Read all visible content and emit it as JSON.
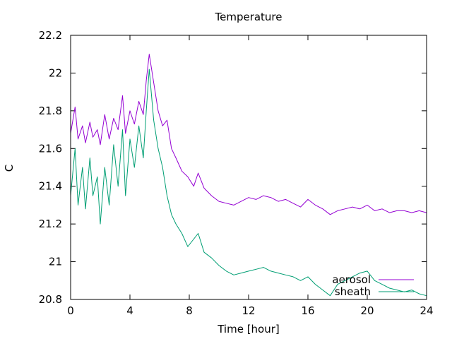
{
  "chart_data": {
    "type": "line",
    "title": "Temperature",
    "xlabel": "Time [hour]",
    "ylabel": "C",
    "xlim": [
      0,
      24
    ],
    "ylim": [
      20.8,
      22.2
    ],
    "xticks": [
      0,
      4,
      8,
      12,
      16,
      20,
      24
    ],
    "xtick_labels": [
      "0",
      "4",
      "8",
      "12",
      "16",
      "20",
      "24"
    ],
    "yticks": [
      20.8,
      21,
      21.2,
      21.4,
      21.6,
      21.8,
      22,
      22.2
    ],
    "ytick_labels": [
      "20.8",
      "21",
      "21.2",
      "21.4",
      "21.6",
      "21.8",
      "22",
      "22.2"
    ],
    "grid": false,
    "legend_position": "bottom-right",
    "series": [
      {
        "name": "aerosol",
        "color": "#9400d3",
        "x": [
          0,
          0.3,
          0.5,
          0.8,
          1.0,
          1.3,
          1.5,
          1.8,
          2.0,
          2.3,
          2.6,
          2.9,
          3.2,
          3.5,
          3.7,
          4.0,
          4.3,
          4.6,
          4.9,
          5.1,
          5.3,
          5.6,
          5.9,
          6.2,
          6.5,
          6.8,
          7.1,
          7.5,
          7.9,
          8.3,
          8.6,
          9.0,
          9.5,
          10.0,
          10.5,
          11.0,
          11.5,
          12.0,
          12.5,
          13.0,
          13.5,
          14.0,
          14.5,
          15.0,
          15.5,
          16.0,
          16.5,
          17.0,
          17.5,
          18.0,
          18.5,
          19.0,
          19.5,
          20.0,
          20.5,
          21.0,
          21.5,
          22.0,
          22.5,
          23.0,
          23.5,
          24.0
        ],
        "values": [
          21.68,
          21.82,
          21.65,
          21.72,
          21.63,
          21.74,
          21.66,
          21.7,
          21.62,
          21.78,
          21.65,
          21.76,
          21.7,
          21.88,
          21.68,
          21.8,
          21.73,
          21.85,
          21.78,
          21.96,
          22.1,
          21.95,
          21.8,
          21.72,
          21.75,
          21.6,
          21.55,
          21.48,
          21.45,
          21.4,
          21.47,
          21.39,
          21.35,
          21.32,
          21.31,
          21.3,
          21.32,
          21.34,
          21.33,
          21.35,
          21.34,
          21.32,
          21.33,
          21.31,
          21.29,
          21.33,
          21.3,
          21.28,
          21.25,
          21.27,
          21.28,
          21.29,
          21.28,
          21.3,
          21.27,
          21.28,
          21.26,
          21.27,
          21.27,
          21.26,
          21.27,
          21.26
        ]
      },
      {
        "name": "sheath",
        "color": "#009e73",
        "x": [
          0,
          0.3,
          0.5,
          0.8,
          1.0,
          1.3,
          1.5,
          1.8,
          2.0,
          2.3,
          2.6,
          2.9,
          3.2,
          3.5,
          3.7,
          4.0,
          4.3,
          4.6,
          4.9,
          5.1,
          5.3,
          5.6,
          5.9,
          6.2,
          6.5,
          6.8,
          7.1,
          7.5,
          7.9,
          8.3,
          8.6,
          9.0,
          9.5,
          10.0,
          10.5,
          11.0,
          11.5,
          12.0,
          12.5,
          13.0,
          13.5,
          14.0,
          14.5,
          15.0,
          15.5,
          16.0,
          16.5,
          17.0,
          17.5,
          18.0,
          18.5,
          19.0,
          19.5,
          20.0,
          20.5,
          21.0,
          21.5,
          22.0,
          22.5,
          23.0,
          23.5,
          24.0
        ],
        "values": [
          21.35,
          21.6,
          21.3,
          21.5,
          21.28,
          21.55,
          21.35,
          21.45,
          21.2,
          21.5,
          21.3,
          21.62,
          21.4,
          21.7,
          21.35,
          21.65,
          21.5,
          21.72,
          21.55,
          21.8,
          22.02,
          21.75,
          21.6,
          21.5,
          21.35,
          21.25,
          21.2,
          21.15,
          21.08,
          21.12,
          21.15,
          21.05,
          21.02,
          20.98,
          20.95,
          20.93,
          20.94,
          20.95,
          20.96,
          20.97,
          20.95,
          20.94,
          20.93,
          20.92,
          20.9,
          20.92,
          20.88,
          20.85,
          20.82,
          20.88,
          20.9,
          20.92,
          20.94,
          20.95,
          20.9,
          20.88,
          20.86,
          20.85,
          20.84,
          20.85,
          20.83,
          20.82
        ]
      }
    ]
  }
}
